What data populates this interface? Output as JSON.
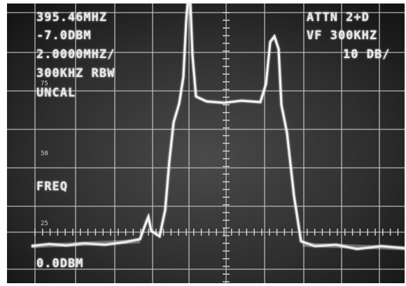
{
  "readout": {
    "top_left": [
      "395.46MHZ",
      "-7.0DBM",
      "2.0000MHZ/",
      "300KHZ RBW",
      "UNCAL"
    ],
    "top_right": [
      "ATTN 2+D",
      "VF 300KHZ",
      "10 DB/"
    ],
    "left_mid": "FREQ",
    "bottom_left": "0.0DBM",
    "scale_labels": [
      "75",
      "50",
      "25"
    ]
  }
}
